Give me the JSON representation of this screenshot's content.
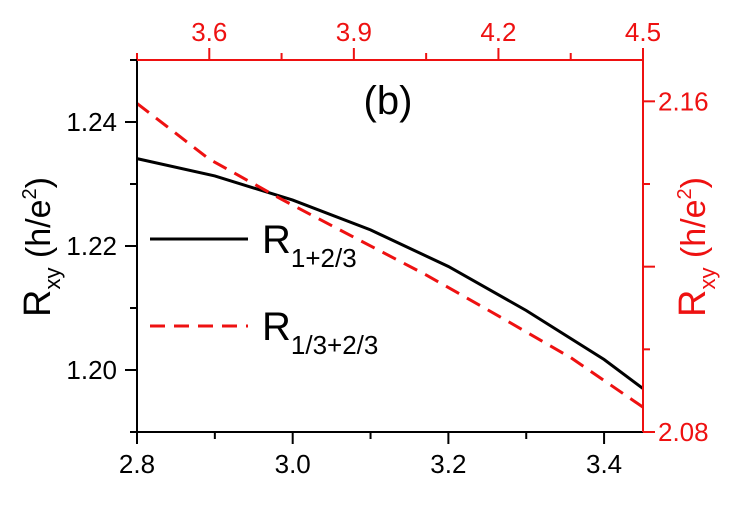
{
  "chart_data": {
    "type": "line",
    "panel_label": "(b)",
    "x_bottom": {
      "min": 2.8,
      "max": 3.45,
      "ticks": [
        "2.8",
        "3.0",
        "3.2",
        "3.4"
      ]
    },
    "x_top": {
      "min": 3.45,
      "max": 4.5,
      "ticks": [
        "3.6",
        "3.9",
        "4.2",
        "4.5"
      ],
      "color": "#ee1111"
    },
    "y_left": {
      "min": 1.19,
      "max": 1.25,
      "ticks": [
        "1.20",
        "1.22",
        "1.24"
      ]
    },
    "y_right": {
      "min": 2.08,
      "max": 2.17,
      "ticks": [
        "2.08",
        "2.16"
      ],
      "color": "#ee1111"
    },
    "left_label": {
      "main": "R",
      "sub": "xy",
      "unit_open": " (h/e",
      "sup": "2",
      "unit_close": ")"
    },
    "right_label": {
      "main": "R",
      "sub": "xy",
      "unit_open": " (h/e",
      "sup": "2",
      "unit_close": ")"
    },
    "series": [
      {
        "name_main": "R",
        "name_sub": "1+2/3",
        "color": "#000000",
        "dash": "solid",
        "axis": "left",
        "x": [
          2.8,
          2.9,
          3.0,
          3.1,
          3.2,
          3.3,
          3.4,
          3.45
        ],
        "y": [
          1.2341,
          1.2313,
          1.2274,
          1.2226,
          1.2167,
          1.2096,
          1.2017,
          1.197
        ]
      },
      {
        "name_main": "R",
        "name_sub": "1/3+2/3",
        "color": "#ee1111",
        "dash": "dashed",
        "axis": "right",
        "x": [
          3.45,
          3.6,
          3.75,
          3.9,
          4.05,
          4.2,
          4.35,
          4.5
        ],
        "y": [
          2.1595,
          2.146,
          2.1363,
          2.1271,
          2.118,
          2.1081,
          2.098,
          2.086
        ]
      }
    ]
  }
}
